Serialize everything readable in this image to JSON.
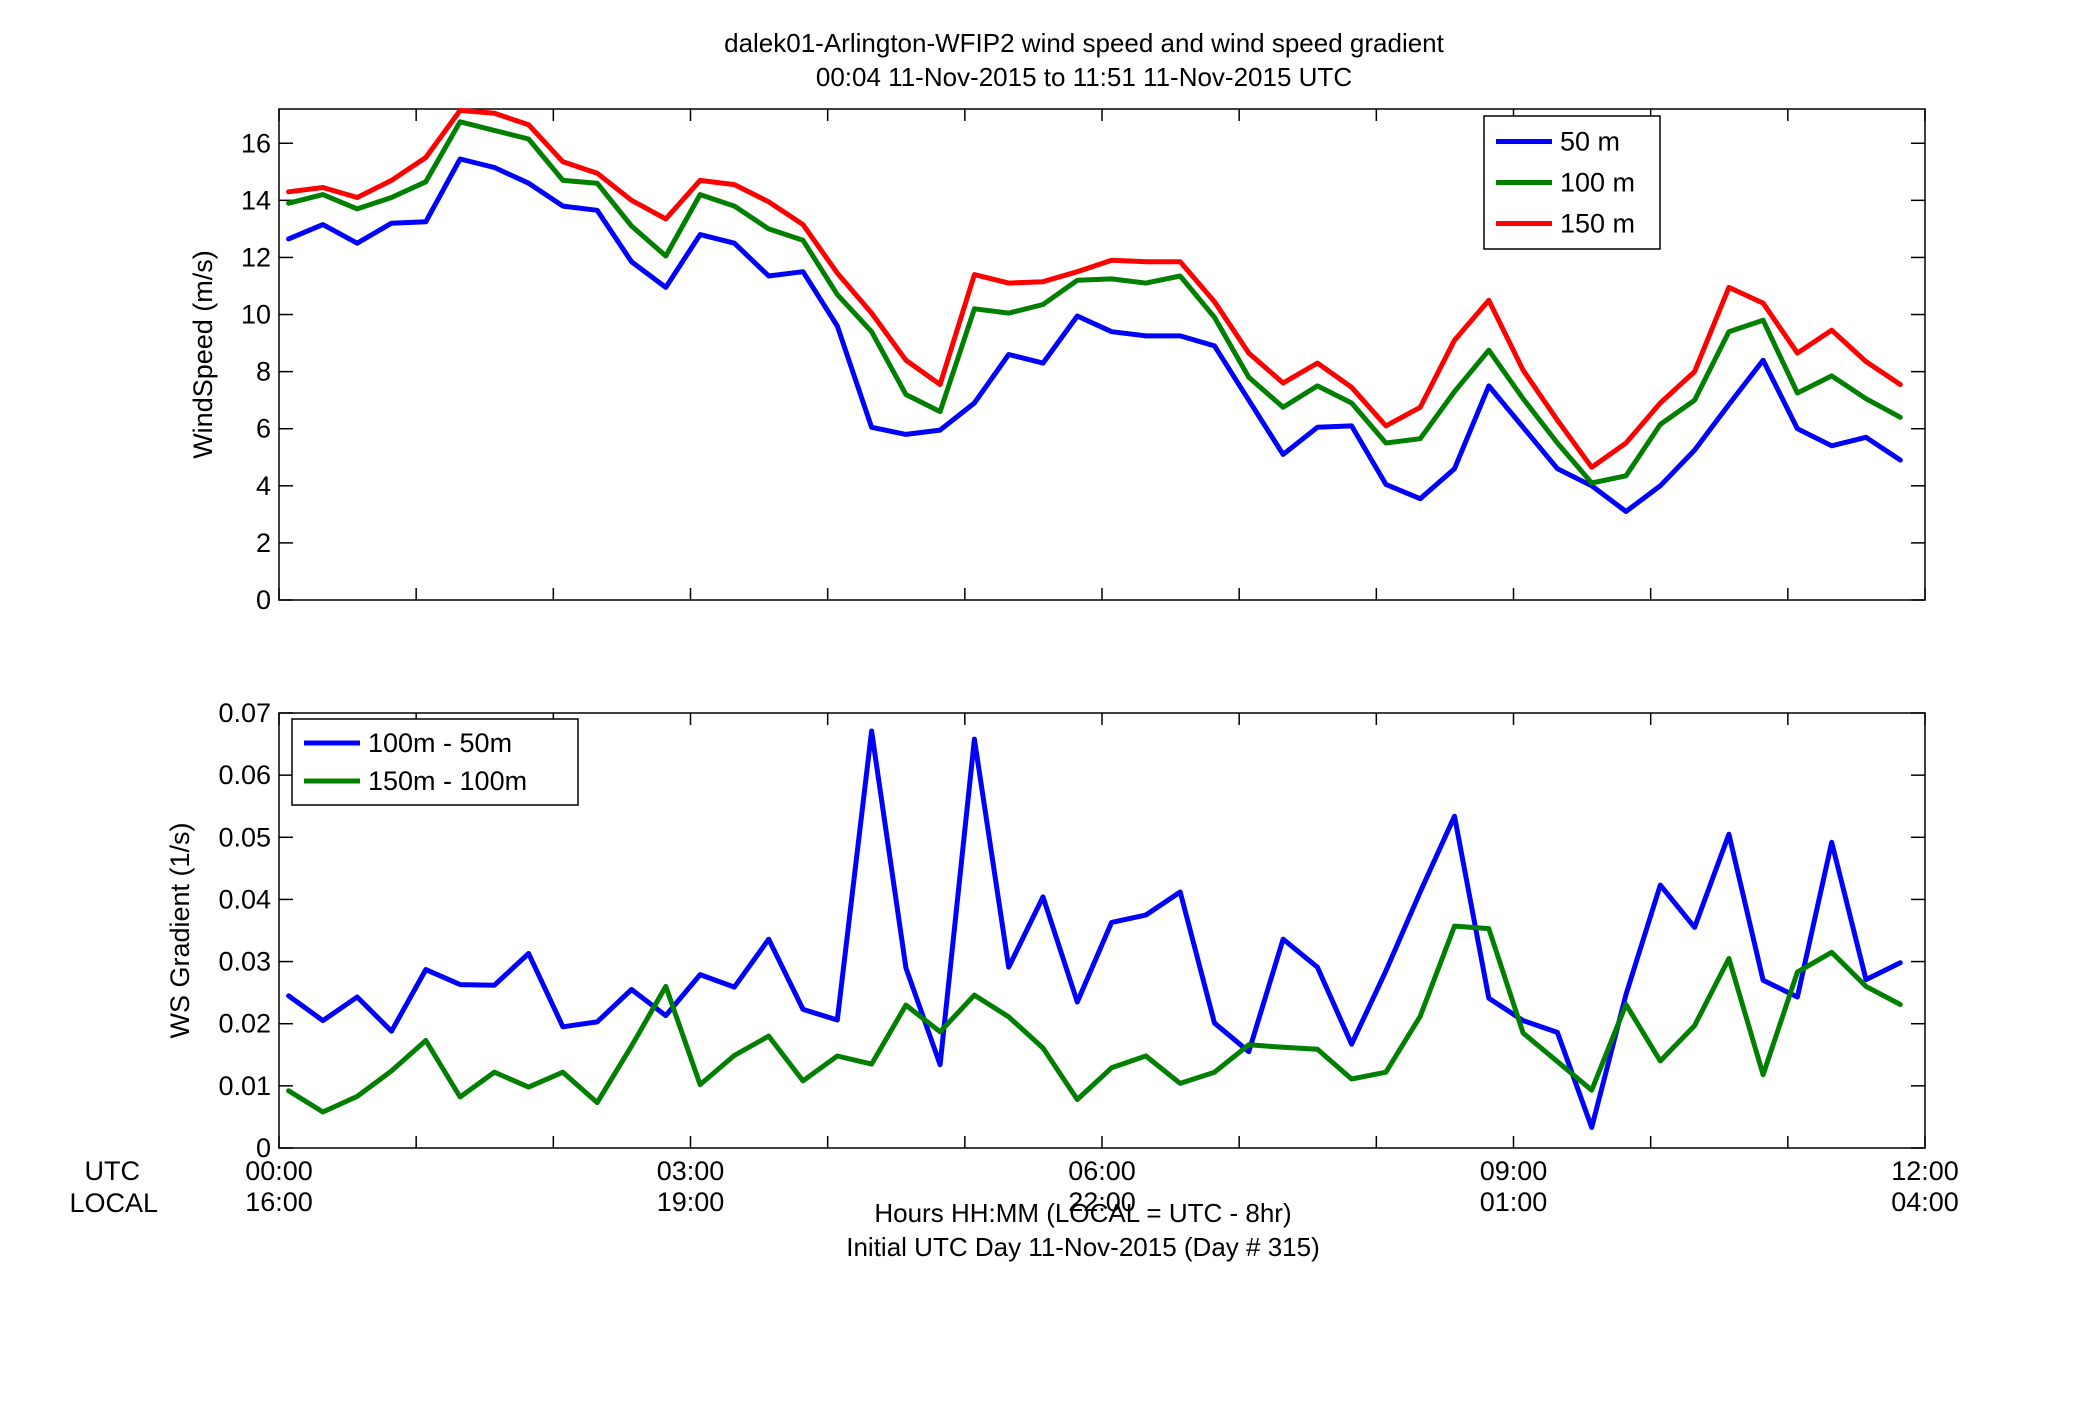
{
  "titles": {
    "line1": "dalek01-Arlington-WFIP2  wind speed and wind speed gradient",
    "line2": "00:04 11-Nov-2015 to 11:51 11-Nov-2015  UTC"
  },
  "axis_labels": {
    "top_y": "WindSpeed (m/s)",
    "bottom_y": "WS Gradient (1/s)",
    "x_line1": "Hours HH:MM  (LOCAL = UTC - 8hr)",
    "x_line2": "Initial UTC Day 11-Nov-2015 (Day # 315)",
    "utc_row": "UTC",
    "local_row": "LOCAL"
  },
  "x_ticks": {
    "hours": [
      0,
      3,
      6,
      9,
      12
    ],
    "utc": [
      "00:00",
      "03:00",
      "06:00",
      "09:00",
      "12:00"
    ],
    "local": [
      "16:00",
      "19:00",
      "22:00",
      "01:00",
      "04:00"
    ]
  },
  "colors": {
    "blue": "#0000ff",
    "green": "#007f00",
    "red": "#ff0000"
  },
  "chart_data": [
    {
      "type": "line",
      "ylabel": "WindSpeed (m/s)",
      "xlim": [
        0,
        12
      ],
      "ylim": [
        0,
        17.2
      ],
      "yticks": [
        0,
        2,
        4,
        6,
        8,
        10,
        12,
        14,
        16
      ],
      "legend_position": "top-right",
      "x": [
        0.07,
        0.32,
        0.57,
        0.82,
        1.07,
        1.32,
        1.57,
        1.82,
        2.07,
        2.32,
        2.57,
        2.82,
        3.07,
        3.32,
        3.57,
        3.82,
        4.07,
        4.32,
        4.57,
        4.82,
        5.07,
        5.32,
        5.57,
        5.82,
        6.07,
        6.32,
        6.57,
        6.82,
        7.07,
        7.32,
        7.57,
        7.82,
        8.07,
        8.32,
        8.57,
        8.82,
        9.07,
        9.32,
        9.57,
        9.82,
        10.07,
        10.32,
        10.57,
        10.82,
        11.07,
        11.32,
        11.57,
        11.82
      ],
      "series": [
        {
          "name": "50 m",
          "color": "#0000ff",
          "values": [
            12.65,
            13.15,
            12.5,
            13.2,
            13.25,
            15.45,
            15.15,
            14.6,
            13.8,
            13.65,
            11.85,
            10.95,
            12.8,
            12.5,
            11.35,
            11.5,
            9.6,
            6.05,
            5.8,
            5.95,
            6.9,
            8.6,
            8.3,
            9.95,
            9.4,
            9.25,
            9.25,
            8.9,
            7.0,
            5.1,
            6.05,
            6.1,
            4.05,
            3.55,
            4.6,
            7.5,
            6.05,
            4.6,
            4.0,
            3.1,
            4.0,
            5.25,
            6.85,
            8.4,
            6.0,
            5.4,
            5.7,
            4.9
          ]
        },
        {
          "name": "100 m",
          "color": "#007f00",
          "values": [
            13.9,
            14.2,
            13.7,
            14.1,
            14.65,
            16.75,
            16.45,
            16.15,
            14.7,
            14.6,
            13.1,
            12.05,
            14.2,
            13.8,
            13.0,
            12.6,
            10.7,
            9.4,
            7.2,
            6.6,
            10.2,
            10.05,
            10.35,
            11.2,
            11.25,
            11.1,
            11.35,
            9.9,
            7.8,
            6.75,
            7.5,
            6.9,
            5.5,
            5.65,
            7.3,
            8.75,
            7.05,
            5.5,
            4.1,
            4.35,
            6.15,
            7.0,
            9.4,
            9.8,
            7.25,
            7.85,
            7.05,
            6.4
          ]
        },
        {
          "name": "150 m",
          "color": "#ff0000",
          "values": [
            14.3,
            14.45,
            14.1,
            14.7,
            15.5,
            17.15,
            17.05,
            16.65,
            15.35,
            14.95,
            14.0,
            13.35,
            14.7,
            14.55,
            13.95,
            13.15,
            11.45,
            10.05,
            8.4,
            7.55,
            11.4,
            11.1,
            11.15,
            11.5,
            11.9,
            11.85,
            11.85,
            10.45,
            8.65,
            7.6,
            8.3,
            7.45,
            6.1,
            6.75,
            9.1,
            10.5,
            8.05,
            6.3,
            4.65,
            5.5,
            6.9,
            8.0,
            10.95,
            10.4,
            8.65,
            9.45,
            8.35,
            7.55
          ]
        }
      ]
    },
    {
      "type": "line",
      "ylabel": "WS Gradient (1/s)",
      "xlim": [
        0,
        12
      ],
      "ylim": [
        0,
        0.07
      ],
      "yticks": [
        0,
        0.01,
        0.02,
        0.03,
        0.04,
        0.05,
        0.06,
        0.07
      ],
      "ytick_labels": [
        "0",
        "0.01",
        "0.02",
        "0.03",
        "0.04",
        "0.05",
        "0.06",
        "0.07"
      ],
      "legend_position": "top-left",
      "x": [
        0.07,
        0.32,
        0.57,
        0.82,
        1.07,
        1.32,
        1.57,
        1.82,
        2.07,
        2.32,
        2.57,
        2.82,
        3.07,
        3.32,
        3.57,
        3.82,
        4.07,
        4.32,
        4.57,
        4.82,
        5.07,
        5.32,
        5.57,
        5.82,
        6.07,
        6.32,
        6.57,
        6.82,
        7.07,
        7.32,
        7.57,
        7.82,
        8.07,
        8.32,
        8.57,
        8.82,
        9.07,
        9.32,
        9.57,
        9.82,
        10.07,
        10.32,
        10.57,
        10.82,
        11.07,
        11.32,
        11.57,
        11.82
      ],
      "series": [
        {
          "name": "100m - 50m",
          "color": "#0000ff",
          "values": [
            0.0245,
            0.0205,
            0.0243,
            0.0188,
            0.0287,
            0.0263,
            0.0262,
            0.0313,
            0.0195,
            0.0203,
            0.0255,
            0.0213,
            0.0279,
            0.0259,
            0.0336,
            0.0223,
            0.0206,
            0.0671,
            0.029,
            0.0134,
            0.0658,
            0.0291,
            0.0404,
            0.0235,
            0.0363,
            0.0375,
            0.0412,
            0.0201,
            0.0155,
            0.0336,
            0.0291,
            0.0167,
            0.0285,
            0.0412,
            0.0534,
            0.0241,
            0.0205,
            0.0186,
            0.0033,
            0.0247,
            0.0423,
            0.0355,
            0.0505,
            0.027,
            0.0243,
            0.0492,
            0.0271,
            0.0298
          ]
        },
        {
          "name": "150m - 100m",
          "color": "#007f00",
          "values": [
            0.0092,
            0.0058,
            0.0083,
            0.0124,
            0.0173,
            0.0082,
            0.0122,
            0.0098,
            0.0122,
            0.0073,
            0.0164,
            0.026,
            0.0102,
            0.0149,
            0.018,
            0.0108,
            0.0148,
            0.0135,
            0.023,
            0.0187,
            0.0246,
            0.0211,
            0.0161,
            0.0078,
            0.0129,
            0.0148,
            0.0104,
            0.0122,
            0.0166,
            0.0162,
            0.0159,
            0.0111,
            0.0122,
            0.0212,
            0.0357,
            0.0353,
            0.0185,
            0.0139,
            0.0093,
            0.0231,
            0.014,
            0.0197,
            0.0305,
            0.0118,
            0.0283,
            0.0315,
            0.026,
            0.0231
          ]
        }
      ]
    }
  ]
}
